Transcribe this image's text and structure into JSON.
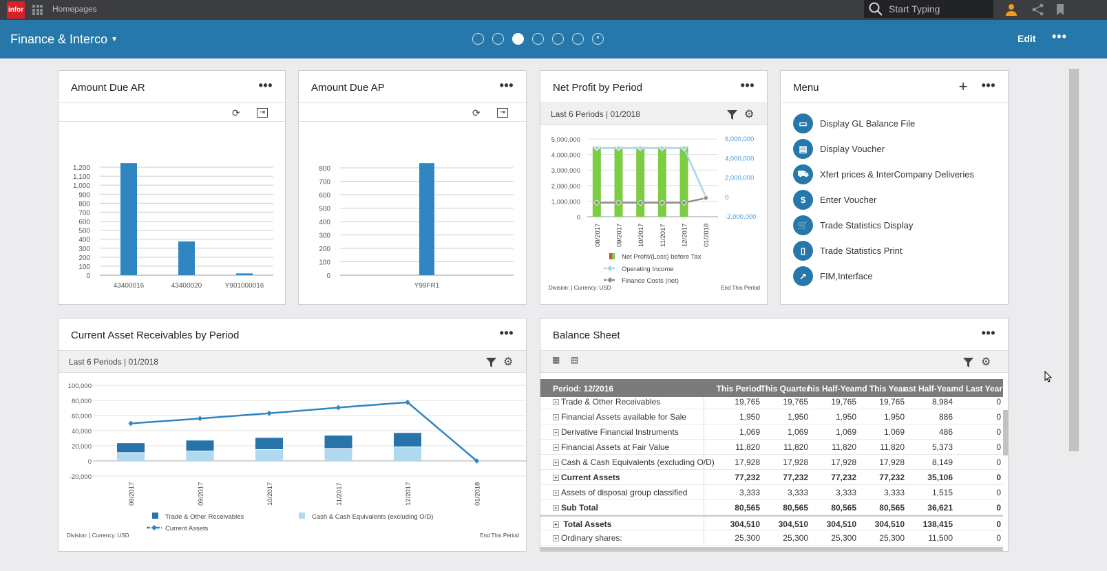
{
  "topbar": {
    "logo": "infor",
    "homepages": "Homepages",
    "search_placeholder": "Start Typing",
    "icons": [
      "apps-grid-icon",
      "search-icon",
      "user-icon",
      "share-icon",
      "bookmark-icon"
    ]
  },
  "header": {
    "title": "Finance & Interco",
    "page_dots": 7,
    "active_dot": 3,
    "edit": "Edit",
    "more": "•••"
  },
  "colors": {
    "header": "#2578a9",
    "topbar": "#3c3d41",
    "bar_blue": "#2f86c1",
    "green": "#7ccc44",
    "light_blue": "#b0d9ef",
    "dark_blue": "#2674a9",
    "gray_line": "#8e8e8e"
  },
  "cards": {
    "ar": {
      "title": "Amount Due AR",
      "more": "•••"
    },
    "ap": {
      "title": "Amount Due AP",
      "more": "•••"
    },
    "np": {
      "title": "Net Profit by Period",
      "more": "•••",
      "sub": "Last 6 Periods | 01/2018",
      "footer_left": "Division:      | Currency: USD",
      "footer_right": "End This Period"
    },
    "menu": {
      "title": "Menu",
      "more": "•••",
      "items": [
        {
          "label": "Display GL Balance File",
          "icon": "window-icon"
        },
        {
          "label": "Display Voucher",
          "icon": "voucher-icon"
        },
        {
          "label": "Xfert prices & InterCompany Deliveries",
          "icon": "truck-icon"
        },
        {
          "label": "Enter Voucher",
          "icon": "dollar-icon"
        },
        {
          "label": "Trade Statistics Display",
          "icon": "cart-icon"
        },
        {
          "label": "Trade Statistics Print",
          "icon": "doc-icon"
        },
        {
          "label": "FIM,Interface",
          "icon": "external-link-icon"
        }
      ]
    },
    "car": {
      "title": "Current Asset Receivables by Period",
      "more": "•••",
      "sub": "Last 6 Periods | 01/2018",
      "footer_left": "Division:      | Currency: USD",
      "footer_right": "End This Period"
    },
    "bs": {
      "title": "Balance Sheet",
      "more": "•••",
      "columns": [
        "Period: 12/2016",
        "This Period",
        "This Quarter",
        "his Half-Year",
        "nd This Year",
        "ast Half-Year",
        "nd Last Year"
      ],
      "rows": [
        {
          "label": "Trade & Other Receivables",
          "bold": false,
          "values": [
            "19,765",
            "19,765",
            "19,765",
            "19,765",
            "8,984",
            "0"
          ]
        },
        {
          "label": "Financial Assets available for Sale",
          "bold": false,
          "values": [
            "1,950",
            "1,950",
            "1,950",
            "1,950",
            "886",
            "0"
          ]
        },
        {
          "label": "Derivative Financial Instruments",
          "bold": false,
          "values": [
            "1,069",
            "1,069",
            "1,069",
            "1,069",
            "486",
            "0"
          ]
        },
        {
          "label": "Financial Assets at Fair Value",
          "bold": false,
          "values": [
            "11,820",
            "11,820",
            "11,820",
            "11,820",
            "5,373",
            "0"
          ]
        },
        {
          "label": "Cash & Cash Equivalents (excluding O/D)",
          "bold": false,
          "values": [
            "17,928",
            "17,928",
            "17,928",
            "17,928",
            "8,149",
            "0"
          ]
        },
        {
          "label": "Current Assets",
          "bold": true,
          "values": [
            "77,232",
            "77,232",
            "77,232",
            "77,232",
            "35,106",
            "0"
          ]
        },
        {
          "label": "Assets of disposal group classified",
          "bold": false,
          "values": [
            "3,333",
            "3,333",
            "3,333",
            "3,333",
            "1,515",
            "0"
          ]
        },
        {
          "label": "Sub Total",
          "bold": true,
          "values": [
            "80,565",
            "80,565",
            "80,565",
            "80,565",
            "36,621",
            "0"
          ]
        },
        {
          "label": " Total Assets",
          "bold": true,
          "values": [
            "304,510",
            "304,510",
            "304,510",
            "304,510",
            "138,415",
            "0"
          ]
        },
        {
          "label": "Ordinary shares:",
          "bold": false,
          "values": [
            "25,300",
            "25,300",
            "25,300",
            "25,300",
            "11,500",
            "0"
          ]
        }
      ]
    }
  },
  "chart_data": [
    {
      "id": "ar",
      "type": "bar",
      "categories": [
        "43400016",
        "43400020",
        "Y901000016"
      ],
      "values": [
        1245,
        375,
        20
      ],
      "yticks": [
        "0",
        "100",
        "200",
        "300",
        "400",
        "500",
        "600",
        "700",
        "800",
        "900",
        "1,000",
        "1,100",
        "1,200"
      ],
      "ylim": [
        0,
        1200
      ],
      "grid": true
    },
    {
      "id": "ap",
      "type": "bar",
      "categories": [
        "Y99FR1"
      ],
      "values": [
        835
      ],
      "yticks": [
        "0",
        "100",
        "200",
        "300",
        "400",
        "500",
        "600",
        "700",
        "800"
      ],
      "ylim": [
        0,
        800
      ],
      "grid": true
    },
    {
      "id": "np",
      "type": "bar+line",
      "categories": [
        "08/2017",
        "09/2017",
        "10/2017",
        "11/2017",
        "12/2017",
        "01/2018"
      ],
      "series": [
        {
          "name": "Net Profit/(Loss) before Tax",
          "type": "bar",
          "axis": "left",
          "values": [
            4500000,
            4500000,
            4500000,
            4500000,
            4500000,
            0
          ]
        },
        {
          "name": "Operating Income",
          "type": "line",
          "axis": "right",
          "values": [
            5000000,
            5000000,
            5000000,
            5000000,
            5000000,
            0
          ]
        },
        {
          "name": "Finance Costs (net)",
          "type": "line",
          "axis": "left",
          "values": [
            900000,
            900000,
            900000,
            900000,
            900000,
            1200000
          ]
        }
      ],
      "yticks_left": [
        "0",
        "1,000,000",
        "2,000,000",
        "3,000,000",
        "4,000,000",
        "5,000,000"
      ],
      "ylim_left": [
        0,
        5000000
      ],
      "yticks_right": [
        "-2,000,000",
        "0",
        "2,000,000",
        "4,000,000",
        "6,000,000"
      ],
      "ylim_right": [
        -2000000,
        6000000
      ],
      "legend": "bottom",
      "grid": true
    },
    {
      "id": "car",
      "type": "stacked-bar+line",
      "categories": [
        "08/2017",
        "09/2017",
        "10/2017",
        "11/2017",
        "12/2017",
        "01/2018"
      ],
      "series": [
        {
          "name": "Trade & Other Receivables",
          "type": "bar",
          "values": [
            13000,
            14500,
            16000,
            17500,
            19000,
            0
          ]
        },
        {
          "name": "Cash & Cash Equivalents (excluding O/D)",
          "type": "bar",
          "values": [
            10500,
            12500,
            14500,
            16000,
            18000,
            0
          ]
        },
        {
          "name": "Current Assets",
          "type": "line",
          "values": [
            49500,
            56000,
            63000,
            70500,
            77500,
            0
          ]
        }
      ],
      "yticks": [
        "-20,000",
        "0",
        "20,000",
        "40,000",
        "60,000",
        "80,000",
        "100,000"
      ],
      "ylim": [
        -20000,
        100000
      ],
      "legend": "bottom",
      "grid": true
    }
  ]
}
